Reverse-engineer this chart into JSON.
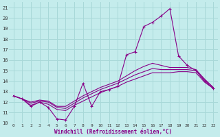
{
  "xlabel": "Windchill (Refroidissement éolien,°C)",
  "bg_color": "#c4ecec",
  "grid_color": "#a8d8d8",
  "line_color": "#880088",
  "xlim": [
    -0.5,
    23.5
  ],
  "ylim": [
    10,
    21.5
  ],
  "xticks": [
    0,
    1,
    2,
    3,
    4,
    5,
    6,
    7,
    8,
    9,
    10,
    11,
    12,
    13,
    14,
    15,
    16,
    17,
    18,
    19,
    20,
    21,
    22,
    23
  ],
  "yticks": [
    10,
    11,
    12,
    13,
    14,
    15,
    16,
    17,
    18,
    19,
    20,
    21
  ],
  "hours": [
    0,
    1,
    2,
    3,
    4,
    5,
    6,
    7,
    8,
    9,
    10,
    11,
    12,
    13,
    14,
    15,
    16,
    17,
    18,
    19,
    20,
    21,
    22,
    23
  ],
  "temp_line": [
    12.6,
    12.3,
    11.6,
    12.0,
    11.5,
    10.4,
    10.3,
    11.6,
    13.8,
    11.6,
    13.0,
    13.2,
    13.5,
    16.5,
    16.8,
    19.2,
    19.6,
    20.2,
    20.9,
    16.4,
    15.5,
    15.0,
    14.0,
    13.3
  ],
  "upper_line": [
    12.6,
    12.3,
    12.0,
    12.2,
    12.1,
    11.6,
    11.6,
    12.1,
    12.6,
    13.0,
    13.4,
    13.7,
    14.0,
    14.5,
    15.0,
    15.4,
    15.7,
    15.5,
    15.3,
    15.3,
    15.3,
    15.1,
    14.2,
    13.4
  ],
  "mid_line": [
    12.6,
    12.3,
    11.9,
    12.1,
    12.0,
    11.5,
    11.4,
    11.9,
    12.4,
    12.8,
    13.2,
    13.5,
    13.8,
    14.2,
    14.6,
    14.9,
    15.2,
    15.1,
    15.1,
    15.1,
    15.1,
    15.0,
    14.1,
    13.4
  ],
  "lower_line": [
    12.6,
    12.3,
    11.7,
    12.0,
    11.8,
    11.3,
    11.2,
    11.7,
    12.1,
    12.5,
    12.9,
    13.2,
    13.5,
    13.9,
    14.2,
    14.5,
    14.8,
    14.8,
    14.8,
    14.9,
    14.9,
    14.8,
    13.9,
    13.3
  ]
}
